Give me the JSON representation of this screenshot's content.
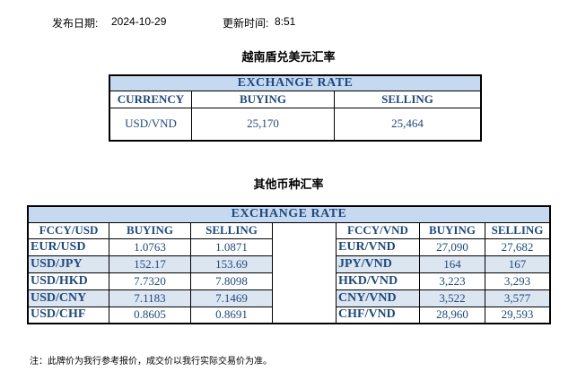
{
  "header": {
    "publish_label": "发布日期:",
    "publish_date": "2024-10-29",
    "update_label": "更新时间:",
    "update_time": "8:51"
  },
  "usd_table": {
    "title": "越南盾兑美元汇率",
    "banner": "EXCHANGE RATE",
    "columns": [
      "CURRENCY",
      "BUYING",
      "SELLING"
    ],
    "row": {
      "currency": "USD/VND",
      "buying": "25,170",
      "selling": "25,464"
    }
  },
  "other_table": {
    "title": "其他币种汇率",
    "banner": "EXCHANGE  RATE",
    "left_columns": [
      "FCCY/USD",
      "BUYING",
      "SELLING"
    ],
    "right_columns": [
      "FCCY/VND",
      "BUYING",
      "SELLING"
    ],
    "rows": [
      {
        "pair": "EUR/USD",
        "buy": "1.0763",
        "sell": "1.0871",
        "vpair": "EUR/VND",
        "vbuy": "27,090",
        "vsell": "27,682"
      },
      {
        "pair": "USD/JPY",
        "buy": "152.17",
        "sell": "153.69",
        "vpair": "JPY/VND",
        "vbuy": "164",
        "vsell": "167"
      },
      {
        "pair": "USD/HKD",
        "buy": "7.7320",
        "sell": "7.8098",
        "vpair": "HKD/VND",
        "vbuy": "3,223",
        "vsell": "3,293"
      },
      {
        "pair": "USD/CNY",
        "buy": "7.1183",
        "sell": "7.1469",
        "vpair": "CNY/VND",
        "vbuy": "3,522",
        "vsell": "3,577"
      },
      {
        "pair": "USD/CHF",
        "buy": "0.8605",
        "sell": "0.8691",
        "vpair": "CHF/VND",
        "vbuy": "28,960",
        "vsell": "29,593"
      }
    ]
  },
  "note": "注：此牌价为我行参考报价，成交价以我行实际交易价为准。",
  "colors": {
    "header_bg": "#c5d9f1",
    "alt_row_bg": "#dce6f1",
    "text": "#1f497d"
  }
}
